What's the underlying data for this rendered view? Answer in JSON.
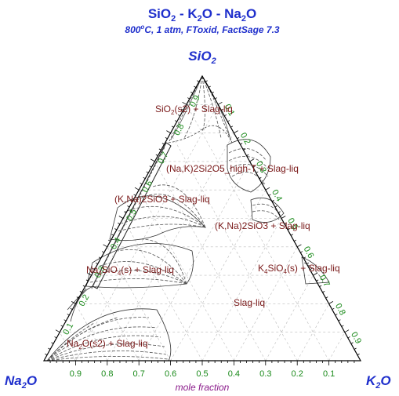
{
  "title": {
    "a": "SiO",
    "b": "2",
    "c": " - K",
    "d": "2",
    "e": "O - Na",
    "f": "2",
    "g": "O"
  },
  "subtitle": {
    "a": "800",
    "b": "o",
    "c": "C, 1 atm, FToxid, FactSage 7.3"
  },
  "vertices": {
    "top": {
      "a": "SiO",
      "b": "2"
    },
    "left": {
      "a": "Na",
      "b": "2",
      "c": "O"
    },
    "right": {
      "a": "K",
      "b": "2",
      "c": "O"
    }
  },
  "axis_label": "mole fraction",
  "ticks": [
    "0.1",
    "0.2",
    "0.3",
    "0.4",
    "0.5",
    "0.6",
    "0.7",
    "0.8",
    "0.9"
  ],
  "bottom_ticks": [
    "0.9",
    "0.8",
    "0.7",
    "0.6",
    "0.5",
    "0.4",
    "0.3",
    "0.2",
    "0.1"
  ],
  "phases": {
    "sio2": {
      "a": "SiO",
      "b": "2",
      "c": "(s2) + Slag-liq"
    },
    "nak2si2o5": "(Na,K)2Si2O5_high-T + Slag-liq",
    "kna2sio3_left": "(K,Na)2SiO3 + Slag-liq",
    "kna2sio3_right": "(K,Na)2SiO3 + Slag-liq",
    "na4sio4": {
      "a": "Na",
      "b": "4",
      "c": "SiO",
      "d": "4",
      "e": "(s) + Slag-liq"
    },
    "k4sio4": {
      "a": "K",
      "b": "4",
      "c": "SiO",
      "d": "4",
      "e": "(s) + Slag-liq"
    },
    "slag": "Slag-liq",
    "na2o": {
      "a": "Na",
      "b": "2",
      "c": "O(s2) + Slag-liq"
    }
  },
  "colors": {
    "title": "#1f2fcc",
    "ticks": "#1a8a1a",
    "phases": "#7a1a1a",
    "axis_label": "#8a1a8a"
  }
}
